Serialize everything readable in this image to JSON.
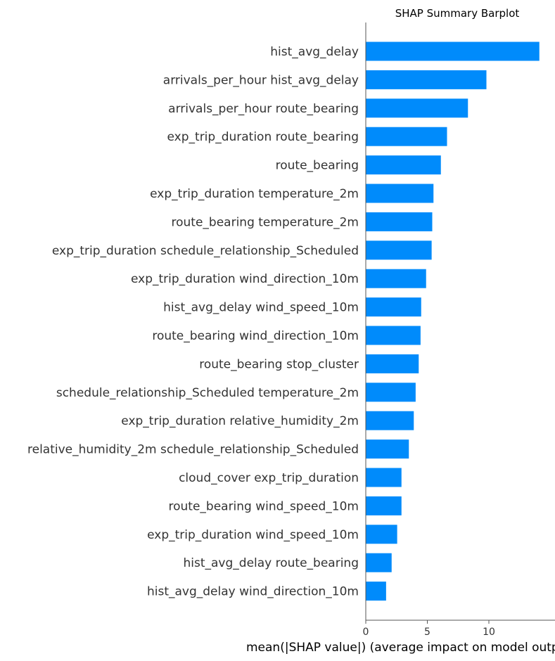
{
  "chart_data": {
    "type": "bar",
    "orientation": "horizontal",
    "title": "SHAP Summary Barplot",
    "xlabel": "mean(|SHAP value|) (average impact on model output magnitude)",
    "ylabel": "",
    "xlim": [
      0,
      14.5
    ],
    "xticks": [
      0,
      5,
      10
    ],
    "grid": false,
    "bar_color": "#008bfb",
    "categories": [
      "hist_avg_delay",
      "arrivals_per_hour hist_avg_delay",
      "arrivals_per_hour route_bearing",
      "exp_trip_duration route_bearing",
      "route_bearing",
      "exp_trip_duration temperature_2m",
      "route_bearing temperature_2m",
      "exp_trip_duration schedule_relationship_Scheduled",
      "exp_trip_duration wind_direction_10m",
      "hist_avg_delay wind_speed_10m",
      "route_bearing wind_direction_10m",
      "route_bearing stop_cluster",
      "schedule_relationship_Scheduled temperature_2m",
      "exp_trip_duration relative_humidity_2m",
      "relative_humidity_2m schedule_relationship_Scheduled",
      "cloud_cover exp_trip_duration",
      "route_bearing wind_speed_10m",
      "exp_trip_duration wind_speed_10m",
      "hist_avg_delay route_bearing",
      "hist_avg_delay wind_direction_10m"
    ],
    "values": [
      14.1,
      9.8,
      8.3,
      6.6,
      6.1,
      5.5,
      5.4,
      5.35,
      4.9,
      4.5,
      4.45,
      4.3,
      4.05,
      3.9,
      3.5,
      2.9,
      2.9,
      2.55,
      2.1,
      1.65
    ]
  }
}
